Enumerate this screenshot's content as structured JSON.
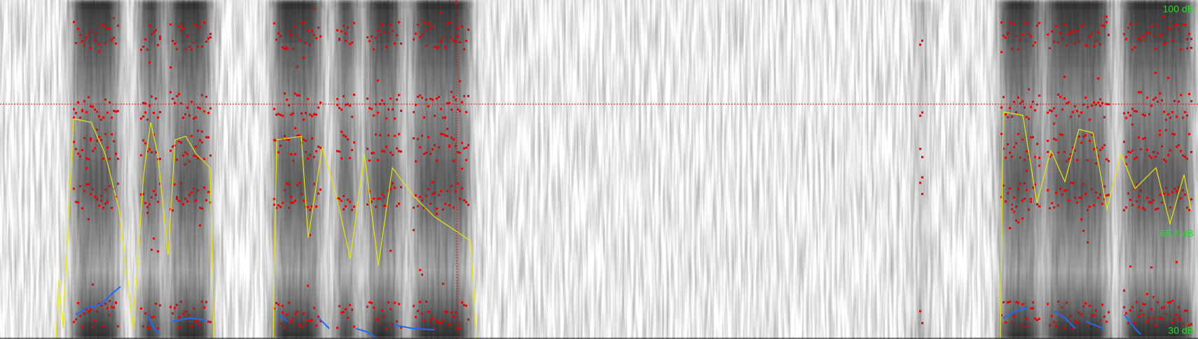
{
  "intensity_labels": {
    "top": "100 dB",
    "middle": "65.3 dB",
    "bottom": "30 dB"
  }
}
